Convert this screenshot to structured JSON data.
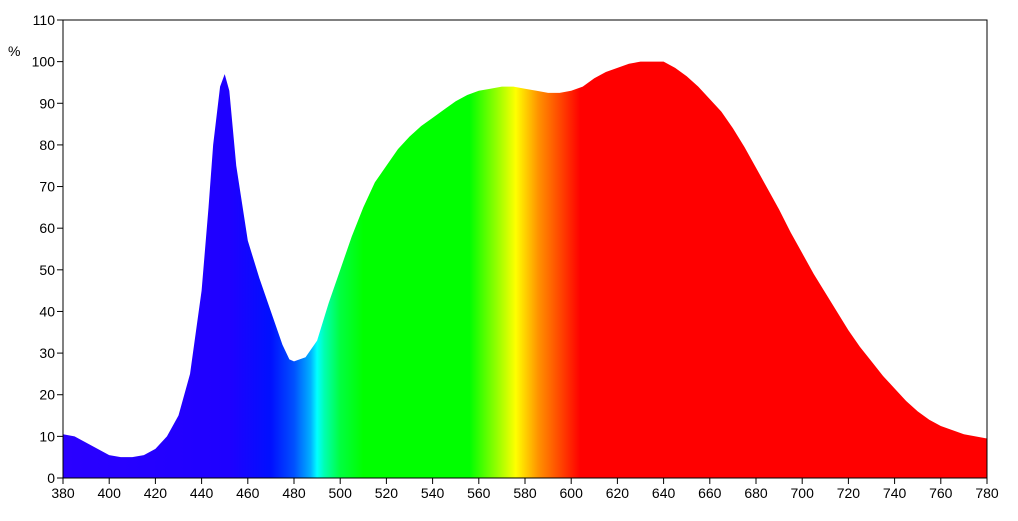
{
  "chart_data": {
    "type": "area",
    "y_label": "%",
    "x": [
      380,
      385,
      390,
      395,
      400,
      405,
      410,
      415,
      420,
      425,
      430,
      435,
      440,
      443,
      445,
      448,
      450,
      452,
      455,
      460,
      465,
      470,
      475,
      478,
      480,
      485,
      490,
      495,
      500,
      505,
      510,
      515,
      520,
      525,
      530,
      535,
      540,
      545,
      550,
      555,
      560,
      565,
      570,
      575,
      580,
      585,
      590,
      595,
      600,
      605,
      610,
      615,
      620,
      625,
      630,
      635,
      640,
      645,
      650,
      655,
      660,
      665,
      670,
      675,
      680,
      685,
      690,
      695,
      700,
      705,
      710,
      715,
      720,
      725,
      730,
      735,
      740,
      745,
      750,
      755,
      760,
      765,
      770,
      775,
      780
    ],
    "y": [
      10.5,
      10,
      8.5,
      7,
      5.5,
      5,
      5,
      5.5,
      7,
      10,
      15,
      25,
      45,
      65,
      80,
      94,
      97,
      93,
      75,
      57,
      48,
      40,
      32,
      28.5,
      28,
      29,
      33,
      42,
      50,
      58,
      65,
      71,
      75,
      79,
      82,
      84.5,
      86.5,
      88.5,
      90.5,
      92,
      93,
      93.5,
      94,
      94,
      93.5,
      93,
      92.5,
      92.5,
      93,
      94,
      96,
      97.5,
      98.5,
      99.5,
      100,
      100,
      100,
      98.5,
      96.5,
      94,
      91,
      88,
      84,
      79.5,
      74.5,
      69.5,
      64.5,
      59,
      54,
      49,
      44.5,
      40,
      35.5,
      31.5,
      28,
      24.5,
      21.5,
      18.5,
      16,
      14,
      12.5,
      11.5,
      10.5,
      10,
      9.5
    ],
    "xlim": [
      380,
      780
    ],
    "ylim": [
      0,
      110
    ],
    "xticks": [
      380,
      400,
      420,
      440,
      460,
      480,
      500,
      520,
      540,
      560,
      580,
      600,
      620,
      640,
      660,
      680,
      700,
      720,
      740,
      760,
      780
    ],
    "yticks": [
      0,
      10,
      20,
      30,
      40,
      50,
      60,
      70,
      80,
      90,
      100,
      110
    ]
  }
}
